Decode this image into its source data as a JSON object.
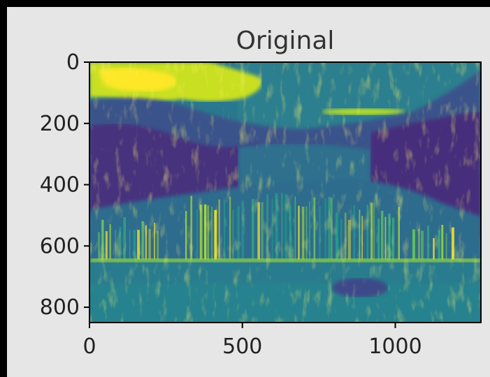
{
  "chart_data": {
    "type": "heatmap",
    "title": "Original",
    "image_description": "viridis-colormap grayscale photo of a waterfall landscape",
    "colormap": "viridis",
    "colors": {
      "dark": "#440154",
      "mid_dark": "#31688e",
      "mid": "#21918c",
      "mid_light": "#35b779",
      "light": "#fde725",
      "figure_bg": "#e6e6e6"
    },
    "image_width": 1280,
    "image_height": 850,
    "xlim": [
      0,
      1280
    ],
    "ylim": [
      850,
      0
    ],
    "xticks": [
      {
        "value": 0,
        "label": "0"
      },
      {
        "value": 500,
        "label": "500"
      },
      {
        "value": 1000,
        "label": "1000"
      }
    ],
    "yticks": [
      {
        "value": 0,
        "label": "0"
      },
      {
        "value": 200,
        "label": "200"
      },
      {
        "value": 400,
        "label": "400"
      },
      {
        "value": 600,
        "label": "600"
      },
      {
        "value": 800,
        "label": "800"
      }
    ],
    "xlabel": "",
    "ylabel": "",
    "grid": false
  }
}
